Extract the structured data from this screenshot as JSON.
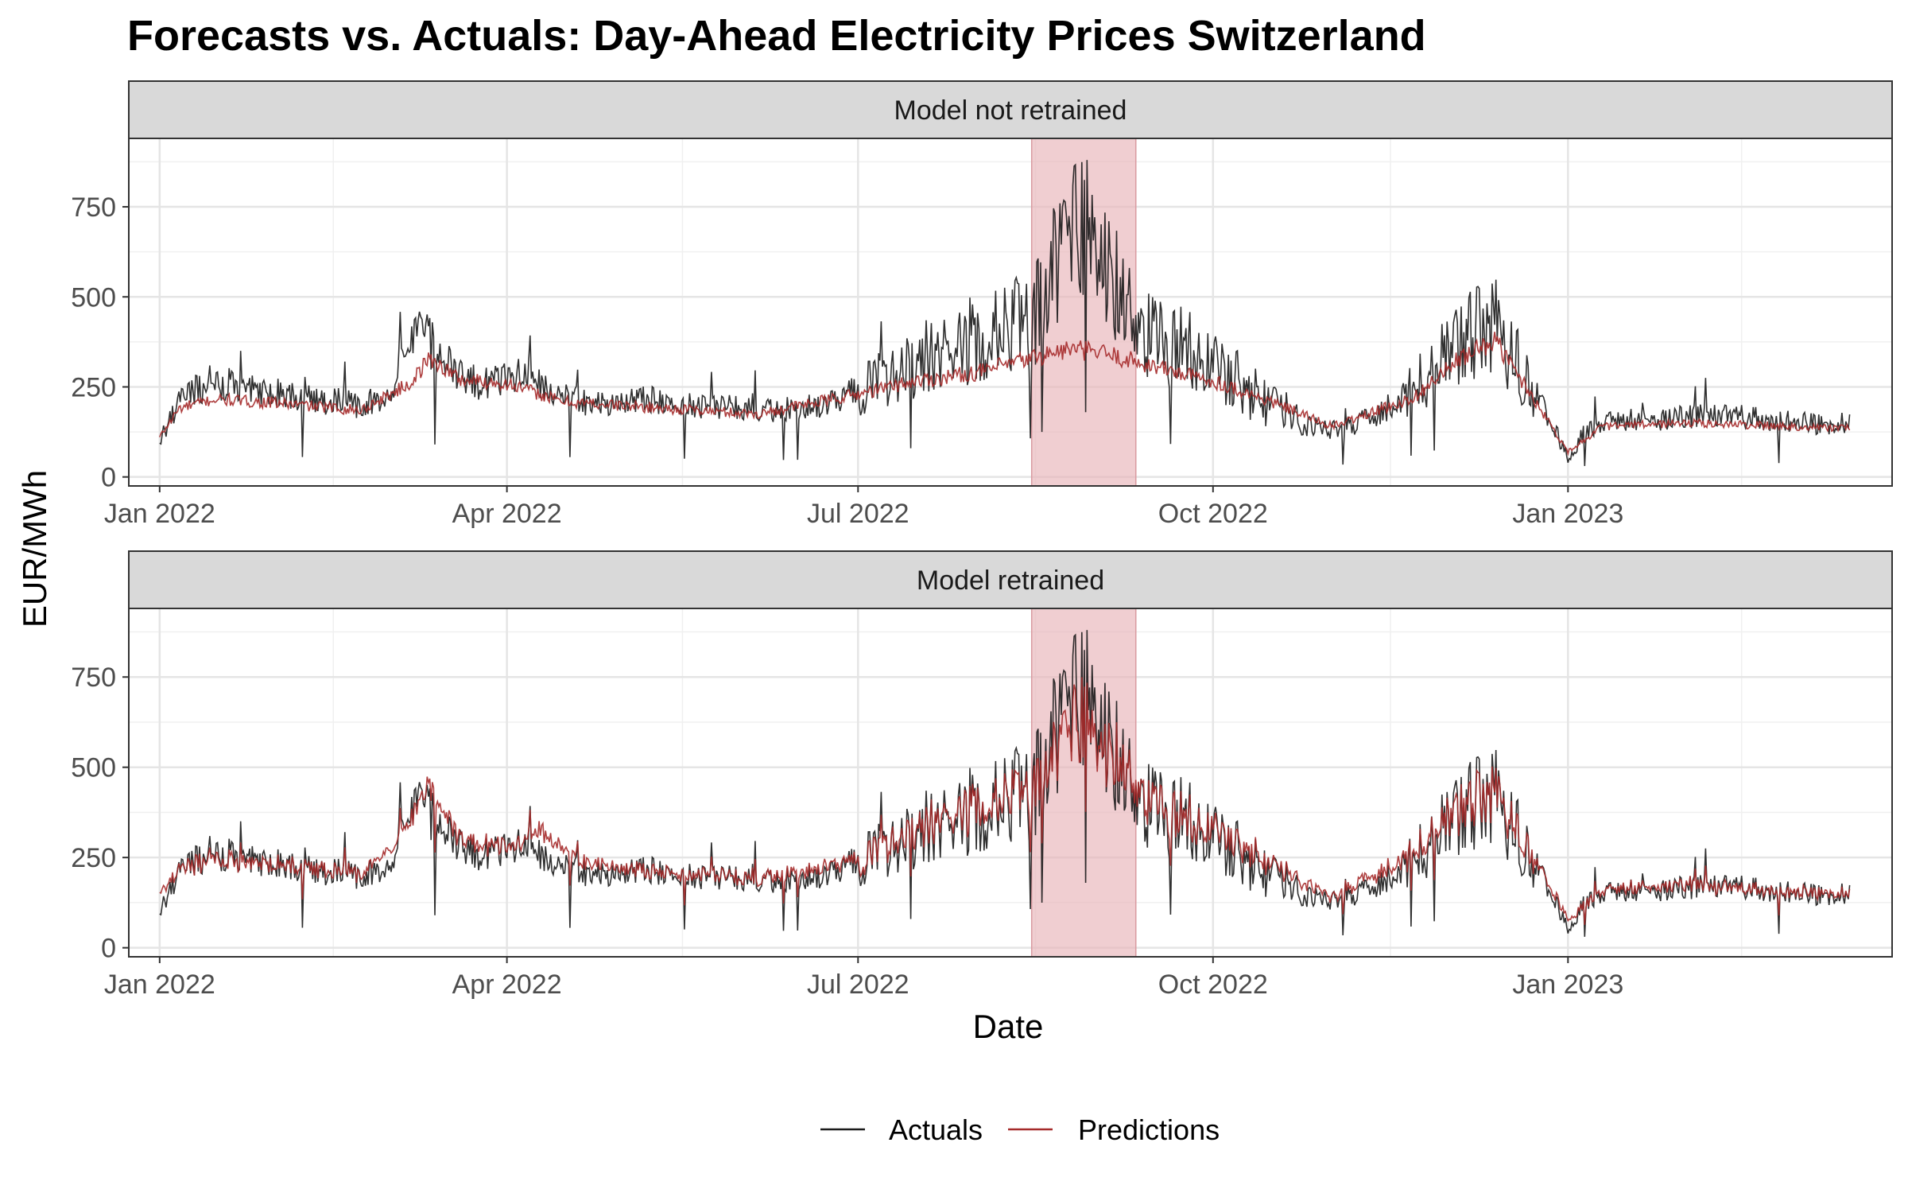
{
  "chart_data": {
    "type": "line",
    "title": "Forecasts vs. Actuals: Day-Ahead Electricity Prices Switzerland",
    "xlabel": "Date",
    "ylabel": "EUR/MWh",
    "x_range": [
      "2021-12-24",
      "2023-03-26"
    ],
    "ylim": [
      -25,
      940
    ],
    "x_ticks": [
      {
        "date": "2022-01-01",
        "label": "Jan 2022"
      },
      {
        "date": "2022-04-01",
        "label": "Apr 2022"
      },
      {
        "date": "2022-07-01",
        "label": "Jul 2022"
      },
      {
        "date": "2022-10-01",
        "label": "Oct 2022"
      },
      {
        "date": "2023-01-01",
        "label": "Jan 2023"
      }
    ],
    "y_ticks": [
      0,
      250,
      500,
      750
    ],
    "grid": true,
    "legend_position": "bottom",
    "colors": {
      "actuals": "#1a1a1a",
      "predictions": "#a52a2a",
      "highlight": "#e8b4b8",
      "strip": "#d9d9d9"
    },
    "highlight_period": {
      "start": "2022-08-15",
      "end": "2022-09-11"
    },
    "series_names": {
      "actuals": "Actuals",
      "predictions": "Predictions"
    },
    "actuals_profile": {
      "dates": [
        "2022-01-01",
        "2022-01-03",
        "2022-01-06",
        "2022-01-10",
        "2022-01-15",
        "2022-01-20",
        "2022-01-25",
        "2022-02-01",
        "2022-02-08",
        "2022-02-15",
        "2022-02-22",
        "2022-03-01",
        "2022-03-04",
        "2022-03-07",
        "2022-03-09",
        "2022-03-12",
        "2022-03-16",
        "2022-03-20",
        "2022-03-25",
        "2022-04-01",
        "2022-04-05",
        "2022-04-10",
        "2022-04-15",
        "2022-04-20",
        "2022-04-28",
        "2022-05-05",
        "2022-05-15",
        "2022-05-25",
        "2022-06-05",
        "2022-06-15",
        "2022-06-25",
        "2022-07-01",
        "2022-07-08",
        "2022-07-15",
        "2022-07-25",
        "2022-08-01",
        "2022-08-08",
        "2022-08-15",
        "2022-08-20",
        "2022-08-25",
        "2022-08-29",
        "2022-09-02",
        "2022-09-06",
        "2022-09-11",
        "2022-09-16",
        "2022-09-22",
        "2022-09-28",
        "2022-10-03",
        "2022-10-10",
        "2022-10-18",
        "2022-10-25",
        "2022-11-01",
        "2022-11-08",
        "2022-11-15",
        "2022-11-22",
        "2022-11-28",
        "2022-12-03",
        "2022-12-08",
        "2022-12-13",
        "2022-12-18",
        "2022-12-23",
        "2022-12-28",
        "2023-01-01",
        "2023-01-05",
        "2023-01-10",
        "2023-01-20",
        "2023-02-01",
        "2023-02-10",
        "2023-02-20",
        "2023-03-01",
        "2023-03-10",
        "2023-03-15"
      ],
      "values": [
        90,
        150,
        210,
        240,
        250,
        260,
        245,
        230,
        220,
        210,
        200,
        220,
        300,
        380,
        440,
        380,
        320,
        280,
        260,
        270,
        290,
        260,
        230,
        210,
        200,
        215,
        205,
        195,
        185,
        190,
        210,
        245,
        290,
        320,
        360,
        390,
        410,
        430,
        560,
        680,
        720,
        640,
        520,
        420,
        380,
        360,
        330,
        300,
        240,
        190,
        140,
        130,
        150,
        190,
        240,
        300,
        370,
        400,
        420,
        330,
        250,
        150,
        50,
        120,
        150,
        160,
        165,
        175,
        160,
        150,
        145,
        150
      ]
    },
    "panels": [
      {
        "label": "Model not retrained",
        "predictions_profile": {
          "dates": [
            "2022-01-01",
            "2022-01-06",
            "2022-01-15",
            "2022-02-01",
            "2022-02-22",
            "2022-03-07",
            "2022-03-12",
            "2022-03-20",
            "2022-04-01",
            "2022-04-15",
            "2022-05-05",
            "2022-06-05",
            "2022-07-01",
            "2022-07-15",
            "2022-08-01",
            "2022-08-15",
            "2022-08-25",
            "2022-09-02",
            "2022-09-11",
            "2022-09-22",
            "2022-10-03",
            "2022-10-18",
            "2022-11-01",
            "2022-11-22",
            "2022-12-03",
            "2022-12-13",
            "2022-12-23",
            "2023-01-01",
            "2023-01-10",
            "2023-02-01",
            "2023-03-01",
            "2023-03-15"
          ],
          "values": [
            110,
            190,
            215,
            205,
            185,
            260,
            330,
            270,
            260,
            210,
            195,
            175,
            230,
            265,
            290,
            330,
            355,
            345,
            320,
            290,
            260,
            200,
            140,
            220,
            320,
            380,
            220,
            70,
            140,
            150,
            140,
            135
          ]
        }
      },
      {
        "label": "Model retrained",
        "predictions_profile": {
          "dates": [
            "2022-01-01",
            "2022-01-06",
            "2022-01-15",
            "2022-02-01",
            "2022-02-22",
            "2022-03-04",
            "2022-03-09",
            "2022-03-12",
            "2022-03-20",
            "2022-04-01",
            "2022-04-10",
            "2022-04-20",
            "2022-05-05",
            "2022-06-05",
            "2022-07-01",
            "2022-07-15",
            "2022-08-01",
            "2022-08-15",
            "2022-08-25",
            "2022-08-29",
            "2022-09-02",
            "2022-09-11",
            "2022-09-22",
            "2022-10-03",
            "2022-10-18",
            "2022-11-01",
            "2022-11-22",
            "2022-12-03",
            "2022-12-13",
            "2022-12-23",
            "2023-01-01",
            "2023-01-10",
            "2023-02-01",
            "2023-03-01",
            "2023-03-15"
          ],
          "values": [
            150,
            215,
            245,
            230,
            205,
            300,
            400,
            440,
            300,
            275,
            330,
            235,
            215,
            190,
            245,
            330,
            400,
            440,
            600,
            650,
            580,
            440,
            360,
            320,
            215,
            140,
            260,
            380,
            430,
            260,
            80,
            160,
            175,
            155,
            150
          ]
        }
      }
    ]
  }
}
